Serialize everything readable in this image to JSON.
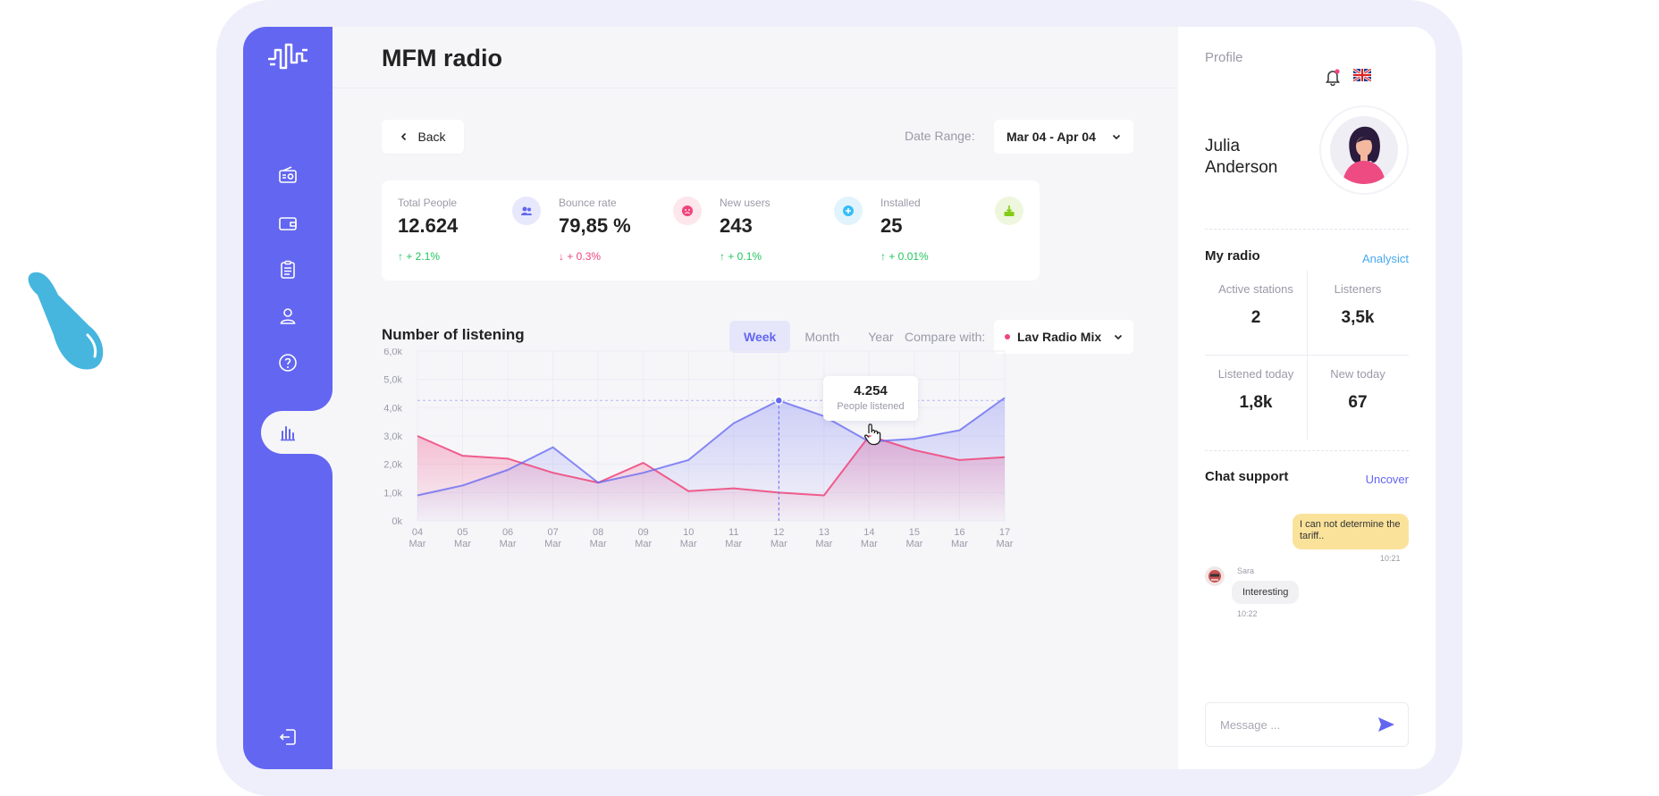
{
  "app": {
    "title": "MFM radio"
  },
  "sidebar": {
    "items": [
      {
        "icon": "radio-icon"
      },
      {
        "icon": "wallet-icon"
      },
      {
        "icon": "clipboard-icon"
      },
      {
        "icon": "user-icon"
      },
      {
        "icon": "help-icon"
      },
      {
        "icon": "bar-chart-icon",
        "active": true
      }
    ],
    "logout_icon": "logout-icon"
  },
  "toolbar": {
    "back_label": "Back",
    "date_range_label": "Date Range:",
    "date_range_value": "Mar 04 - Apr 04"
  },
  "stats": [
    {
      "label": "Total People",
      "value": "12.624",
      "change": "+ 2.1%",
      "trend": "up",
      "icon": "people-icon",
      "color": "#6366f1"
    },
    {
      "label": "Bounce rate",
      "value": "79,85 %",
      "change": "+ 0.3%",
      "trend": "down",
      "icon": "sad-face-icon",
      "color": "#f0447a"
    },
    {
      "label": "New users",
      "value": "243",
      "change": "+ 0.1%",
      "trend": "up",
      "icon": "plus-icon",
      "color": "#38bdf8"
    },
    {
      "label": "Installed",
      "value": "25",
      "change": "+ 0.01%",
      "trend": "up",
      "icon": "download-icon",
      "color": "#84cc16"
    }
  ],
  "listening": {
    "title": "Number of listening",
    "tabs": [
      "Week",
      "Month",
      "Year"
    ],
    "active_tab": "Week",
    "compare_label": "Compare with:",
    "compare_value": "Lav Radio Mix",
    "tooltip_value": "4.254",
    "tooltip_label": "People listened"
  },
  "chart_data": {
    "type": "area",
    "x": [
      "04 Mar",
      "05 Mar",
      "06 Mar",
      "07 Mar",
      "08 Mar",
      "09 Mar",
      "10 Mar",
      "11 Mar",
      "12 Mar",
      "13 Mar",
      "14 Mar",
      "15 Mar",
      "16 Mar",
      "17 Mar"
    ],
    "x_day": [
      "04",
      "05",
      "06",
      "07",
      "08",
      "09",
      "10",
      "11",
      "12",
      "13",
      "14",
      "15",
      "16",
      "17"
    ],
    "x_month": "Mar",
    "y_ticks": [
      "0k",
      "1,0k",
      "2,0k",
      "3,0k",
      "4,0k",
      "5,0k",
      "6,0k"
    ],
    "ylim": [
      0,
      6000
    ],
    "series": [
      {
        "values": [
          900,
          1250,
          1800,
          2600,
          1350,
          1700,
          2150,
          3450,
          4254,
          3700,
          2800,
          2900,
          3200,
          4350
        ],
        "color": "#6366f1"
      },
      {
        "values": [
          3000,
          2300,
          2200,
          1700,
          1350,
          2050,
          1050,
          1150,
          1000,
          900,
          3000,
          2500,
          2150,
          2250
        ],
        "color": "#f0447a"
      }
    ],
    "highlight_index": 8,
    "grid": true
  },
  "profile": {
    "header": "Profile",
    "first_name": "Julia",
    "last_name": "Anderson"
  },
  "my_radio": {
    "title": "My radio",
    "link": "Analysict",
    "stats": [
      {
        "label": "Active stations",
        "value": "2"
      },
      {
        "label": "Listeners",
        "value": "3,5k"
      },
      {
        "label": "Listened today",
        "value": "1,8k"
      },
      {
        "label": "New today",
        "value": "67"
      }
    ]
  },
  "chat": {
    "title": "Chat support",
    "link": "Uncover",
    "messages": [
      {
        "from": "me",
        "text": "I can not determine the tariff..",
        "time": "10:21"
      },
      {
        "from": "Sara",
        "text": "Interesting",
        "time": "10:22"
      }
    ],
    "placeholder": "Message ..."
  }
}
